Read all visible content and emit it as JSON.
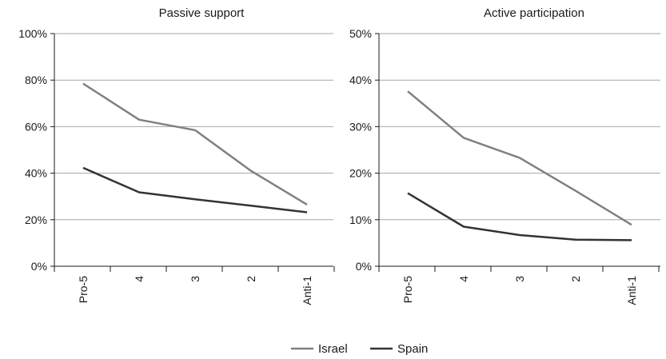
{
  "chart_data": [
    {
      "type": "line",
      "title": "Passive support",
      "categories": [
        "Pro-5",
        "4",
        "3",
        "2",
        "Anti-1"
      ],
      "y_tick_labels": [
        "0%",
        "20%",
        "40%",
        "60%",
        "80%",
        "100%"
      ],
      "ylim": [
        0,
        100
      ],
      "grid": true,
      "series": [
        {
          "name": "Israel",
          "color": "#808080",
          "values": [
            78.5,
            63,
            58.5,
            41,
            26.5
          ]
        },
        {
          "name": "Spain",
          "color": "#333333",
          "values": [
            42.3,
            31.8,
            28.8,
            26,
            23.2
          ]
        }
      ]
    },
    {
      "type": "line",
      "title": "Active participation",
      "categories": [
        "Pro-5",
        "4",
        "3",
        "2",
        "Anti-1"
      ],
      "y_tick_labels": [
        "0%",
        "10%",
        "20%",
        "30%",
        "40%",
        "50%"
      ],
      "ylim": [
        0,
        50
      ],
      "grid": true,
      "series": [
        {
          "name": "Israel",
          "color": "#808080",
          "values": [
            37.6,
            27.6,
            23.3,
            16.2,
            8.9
          ]
        },
        {
          "name": "Spain",
          "color": "#333333",
          "values": [
            15.7,
            8.5,
            6.7,
            5.7,
            5.6
          ]
        }
      ]
    }
  ],
  "legend": {
    "placement": "bottom-center",
    "items": [
      {
        "label": "Israel",
        "color": "#808080"
      },
      {
        "label": "Spain",
        "color": "#333333"
      }
    ]
  }
}
